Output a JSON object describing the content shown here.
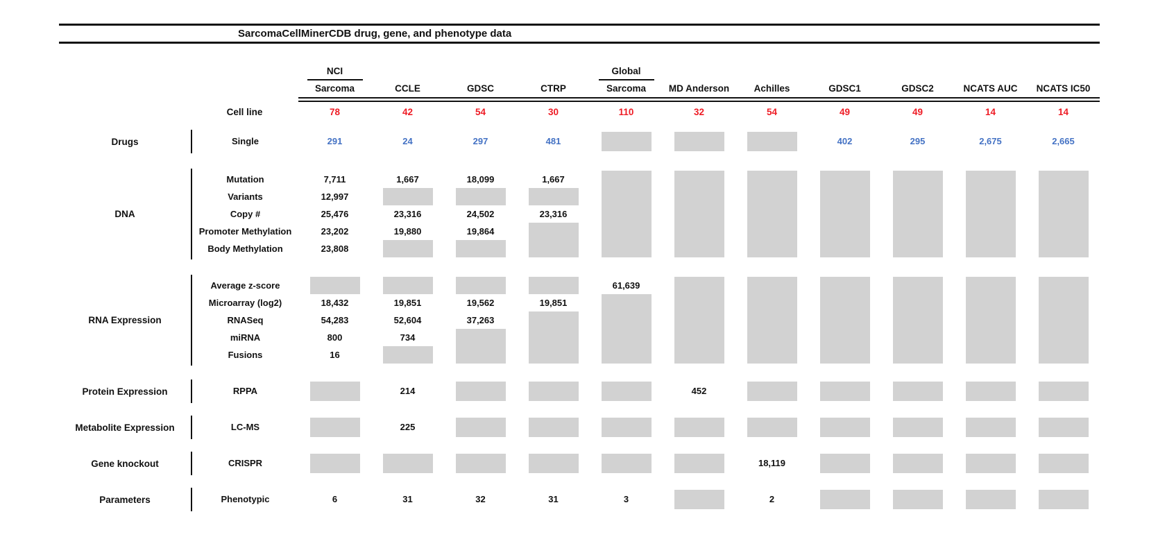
{
  "title": "SarcomaCellMinerCDB drug, gene, and phenotype data",
  "colors": {
    "count_red": "#ee1c25",
    "drug_blue": "#4472c4",
    "missing_gray": "#d2d2d2"
  },
  "columns": [
    {
      "top": "NCI",
      "name": "Sarcoma"
    },
    {
      "top": "",
      "name": "CCLE"
    },
    {
      "top": "",
      "name": "GDSC"
    },
    {
      "top": "",
      "name": "CTRP"
    },
    {
      "top": "Global",
      "name": "Sarcoma"
    },
    {
      "top": "",
      "name": "MD Anderson"
    },
    {
      "top": "",
      "name": "Achilles"
    },
    {
      "top": "",
      "name": "GDSC1"
    },
    {
      "top": "",
      "name": "GDSC2"
    },
    {
      "top": "",
      "name": "NCATS AUC"
    },
    {
      "top": "",
      "name": "NCATS IC50"
    }
  ],
  "cell_line_row": {
    "label": "Cell line",
    "values": [
      "78",
      "42",
      "54",
      "30",
      "110",
      "32",
      "54",
      "49",
      "49",
      "14",
      "14"
    ]
  },
  "sections": [
    {
      "category": "Drugs",
      "rows": [
        {
          "label": "Single",
          "color": "blue",
          "values": [
            "291",
            "24",
            "297",
            "481",
            "GRAY",
            "GRAY",
            "GRAY",
            "402",
            "295",
            "2,675",
            "2,665"
          ]
        }
      ]
    },
    {
      "category": "DNA",
      "rows": [
        {
          "label": "Mutation",
          "values": [
            "7,711",
            "1,667",
            "18,099",
            "1,667",
            "GRAY",
            "GRAY",
            "GRAY",
            "GRAY",
            "GRAY",
            "GRAY",
            "GRAY"
          ]
        },
        {
          "label": "Variants",
          "values": [
            "12,997",
            "GRAY",
            "GRAY",
            "GRAY",
            "GRAY",
            "GRAY",
            "GRAY",
            "GRAY",
            "GRAY",
            "GRAY",
            "GRAY"
          ]
        },
        {
          "label": "Copy #",
          "values": [
            "25,476",
            "23,316",
            "24,502",
            "23,316",
            "GRAY",
            "GRAY",
            "GRAY",
            "GRAY",
            "GRAY",
            "GRAY",
            "GRAY"
          ]
        },
        {
          "label": "Promoter Methylation",
          "values": [
            "23,202",
            "19,880",
            "19,864",
            "GRAY",
            "GRAY",
            "GRAY",
            "GRAY",
            "GRAY",
            "GRAY",
            "GRAY",
            "GRAY"
          ]
        },
        {
          "label": "Body Methylation",
          "values": [
            "23,808",
            "GRAY",
            "GRAY",
            "GRAY",
            "GRAY",
            "GRAY",
            "GRAY",
            "GRAY",
            "GRAY",
            "GRAY",
            "GRAY"
          ]
        }
      ]
    },
    {
      "category": "RNA Expression",
      "rows": [
        {
          "label": "Average z-score",
          "values": [
            "GRAY",
            "GRAY",
            "GRAY",
            "GRAY",
            "61,639",
            "GRAY",
            "GRAY",
            "GRAY",
            "GRAY",
            "GRAY",
            "GRAY"
          ]
        },
        {
          "label": "Microarray (log2)",
          "values": [
            "18,432",
            "19,851",
            "19,562",
            "19,851",
            "GRAY",
            "GRAY",
            "GRAY",
            "GRAY",
            "GRAY",
            "GRAY",
            "GRAY"
          ]
        },
        {
          "label": "RNASeq",
          "values": [
            "54,283",
            "52,604",
            "37,263",
            "GRAY",
            "GRAY",
            "GRAY",
            "GRAY",
            "GRAY",
            "GRAY",
            "GRAY",
            "GRAY"
          ]
        },
        {
          "label": "miRNA",
          "values": [
            "800",
            "734",
            "GRAY",
            "GRAY",
            "GRAY",
            "GRAY",
            "GRAY",
            "GRAY",
            "GRAY",
            "GRAY",
            "GRAY"
          ]
        },
        {
          "label": "Fusions",
          "values": [
            "16",
            "GRAY",
            "GRAY",
            "GRAY",
            "GRAY",
            "GRAY",
            "GRAY",
            "GRAY",
            "GRAY",
            "GRAY",
            "GRAY"
          ]
        }
      ]
    },
    {
      "category": "Protein Expression",
      "rows": [
        {
          "label": "RPPA",
          "values": [
            "GRAY",
            "214",
            "GRAY",
            "GRAY",
            "GRAY",
            "452",
            "GRAY",
            "GRAY",
            "GRAY",
            "GRAY",
            "GRAY"
          ]
        }
      ]
    },
    {
      "category": "Metabolite Expression",
      "rows": [
        {
          "label": "LC-MS",
          "values": [
            "GRAY",
            "225",
            "GRAY",
            "GRAY",
            "GRAY",
            "GRAY",
            "GRAY",
            "GRAY",
            "GRAY",
            "GRAY",
            "GRAY"
          ]
        }
      ]
    },
    {
      "category": "Gene knockout",
      "rows": [
        {
          "label": "CRISPR",
          "values": [
            "GRAY",
            "GRAY",
            "GRAY",
            "GRAY",
            "GRAY",
            "GRAY",
            "18,119",
            "GRAY",
            "GRAY",
            "GRAY",
            "GRAY"
          ]
        }
      ]
    },
    {
      "category": "Parameters",
      "rows": [
        {
          "label": "Phenotypic",
          "values": [
            "6",
            "31",
            "32",
            "31",
            "3",
            "GRAY",
            "2",
            "GRAY",
            "GRAY",
            "GRAY",
            "GRAY"
          ]
        }
      ]
    }
  ]
}
